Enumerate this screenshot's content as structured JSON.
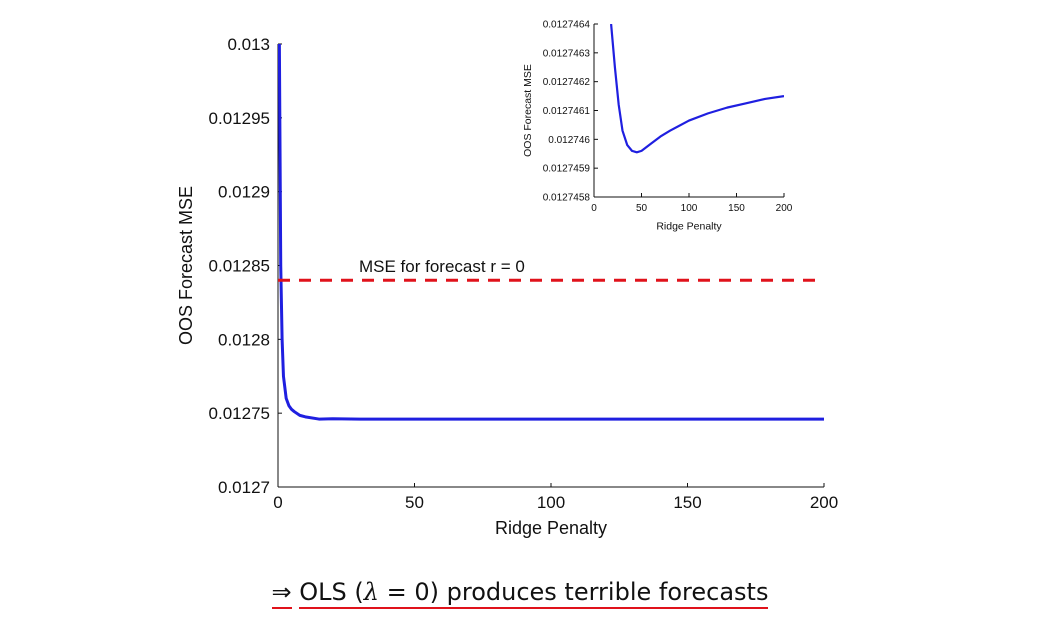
{
  "chart_data": [
    {
      "type": "line",
      "title": "",
      "xlabel": "Ridge Penalty",
      "ylabel": "OOS Forecast MSE",
      "xlim": [
        0,
        200
      ],
      "ylim": [
        0.0127,
        0.013
      ],
      "xticks": [
        "0",
        "50",
        "100",
        "150",
        "200"
      ],
      "yticks": [
        "0.0127",
        "0.01275",
        "0.0128",
        "0.01285",
        "0.0129",
        "0.01295",
        "0.013"
      ],
      "grid": false,
      "series": [
        {
          "color": "#1f1fe0",
          "x": [
            0.5,
            1,
            1.5,
            2,
            3,
            4,
            5,
            6,
            8,
            10,
            15,
            20,
            30,
            50,
            100,
            150,
            200
          ],
          "y": [
            0.013,
            0.01285,
            0.0128,
            0.012775,
            0.01276,
            0.012755,
            0.0127525,
            0.012751,
            0.0127485,
            0.0127475,
            0.012746,
            0.0127462,
            0.012746,
            0.012746,
            0.012746,
            0.012746,
            0.012746
          ]
        },
        {
          "name": "MSE for forecast r = 0",
          "style": "dashed",
          "color": "#e0121b",
          "x": [
            0,
            200
          ],
          "y": [
            0.01284,
            0.01284
          ]
        }
      ],
      "annotation": "MSE for forecast r = 0"
    },
    {
      "type": "line",
      "title": "",
      "xlabel": "Ridge Penalty",
      "ylabel": "OOS Forecast MSE",
      "xlim": [
        0,
        200
      ],
      "ylim": [
        0.0127458,
        0.0127464
      ],
      "xticks": [
        "0",
        "50",
        "100",
        "150",
        "200"
      ],
      "yticks": [
        "0.0127458",
        "0.0127459",
        "0.012746",
        "0.0127461",
        "0.0127462",
        "0.0127463",
        "0.0127464"
      ],
      "grid": false,
      "series": [
        {
          "color": "#1f1fe0",
          "x": [
            18,
            22,
            26,
            30,
            35,
            40,
            45,
            50,
            60,
            70,
            80,
            100,
            120,
            140,
            160,
            180,
            200
          ],
          "y": [
            0.0127464,
            0.01274625,
            0.01274612,
            0.01274603,
            0.01274598,
            0.01274596,
            0.012745955,
            0.01274596,
            0.012745985,
            0.01274601,
            0.01274603,
            0.012746065,
            0.01274609,
            0.01274611,
            0.012746125,
            0.01274614,
            0.01274615
          ]
        }
      ]
    }
  ],
  "caption": {
    "arrow": "⇒",
    "text_before": "OLS (",
    "lambda": "λ",
    "eq": " = 0",
    "text_after": ") produces terrible forecasts"
  }
}
